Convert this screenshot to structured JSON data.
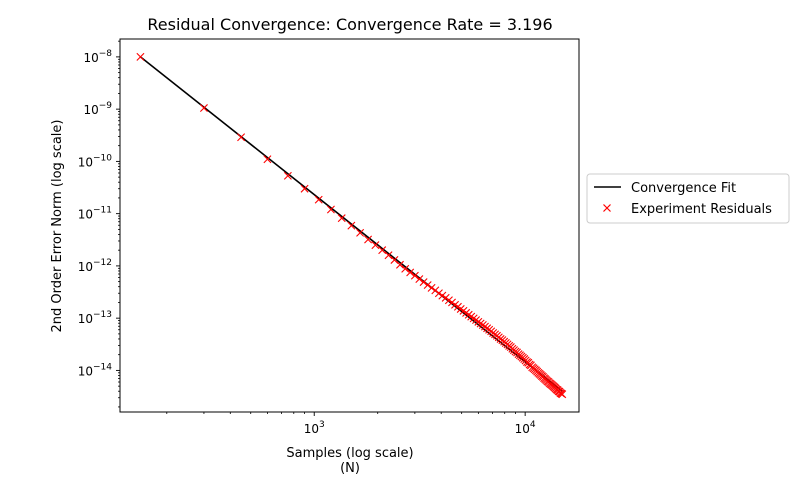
{
  "chart_data": {
    "type": "scatter",
    "title": "Residual Convergence: Convergence Rate = 3.196",
    "xlabel": "Samples (log scale)",
    "xlabel_sub": "(N)",
    "ylabel": "2nd Order Error Norm (log scale)",
    "xscale": "log",
    "yscale": "log",
    "xlim": [
      120,
      18000
    ],
    "ylim": [
      1.6e-15,
      2.2e-08
    ],
    "xticks": [
      {
        "value": 1000,
        "base": "10",
        "exp": "3"
      },
      {
        "value": 10000,
        "base": "10",
        "exp": "4"
      }
    ],
    "yticks": [
      {
        "value": 1e-08,
        "base": "10",
        "exp": "−8"
      },
      {
        "value": 1e-09,
        "base": "10",
        "exp": "−9"
      },
      {
        "value": 1e-10,
        "base": "10",
        "exp": "−10"
      },
      {
        "value": 1e-11,
        "base": "10",
        "exp": "−11"
      },
      {
        "value": 1e-12,
        "base": "10",
        "exp": "−12"
      },
      {
        "value": 1e-13,
        "base": "10",
        "exp": "−13"
      },
      {
        "value": 1e-14,
        "base": "10",
        "exp": "−14"
      }
    ],
    "grid": false,
    "legend_position": "outside-right",
    "series": [
      {
        "name": "Convergence Fit",
        "kind": "line",
        "color": "#000000",
        "x": [
          150,
          15000
        ],
        "y": [
          1e-08,
          4e-15
        ]
      },
      {
        "name": "Experiment Residuals",
        "kind": "scatter",
        "marker": "x",
        "color": "#ff0000",
        "x": [
          150,
          300,
          450,
          600,
          750,
          900,
          1050,
          1200,
          1350,
          1500,
          1650,
          1800,
          1950,
          2100,
          2250,
          2400,
          2550,
          2700,
          2850,
          3000,
          3150,
          3300,
          3450,
          3600,
          3750,
          3900,
          4050,
          4200,
          4350,
          4500,
          4650,
          4800,
          4950,
          5100,
          5250,
          5400,
          5550,
          5700,
          5850,
          6000,
          6150,
          6300,
          6450,
          6600,
          6750,
          6900,
          7050,
          7200,
          7350,
          7500,
          7650,
          7800,
          7950,
          8100,
          8250,
          8400,
          8550,
          8700,
          8850,
          9000,
          9150,
          9300,
          9450,
          9600,
          9750,
          9900,
          10050,
          10200,
          10350,
          10500,
          10650,
          10800,
          10950,
          11100,
          11250,
          11400,
          11550,
          11700,
          11850,
          12000,
          12150,
          12300,
          12450,
          12600,
          12750,
          12900,
          13050,
          13200,
          13350,
          13500,
          13650,
          13800,
          13950,
          14100,
          14250,
          14400,
          14550,
          14700,
          14850,
          15000
        ],
        "y": [
          1e-08,
          1.05e-09,
          2.9e-10,
          1.1e-10,
          5.3e-11,
          3e-11,
          1.85e-11,
          1.2e-11,
          8.2e-12,
          5.9e-12,
          4.3e-12,
          3.2e-12,
          2.5e-12,
          2e-12,
          1.6e-12,
          1.3e-12,
          1.05e-12,
          8.8e-13,
          7.5e-13,
          6.5e-13,
          5.6e-13,
          4.9e-13,
          4.3e-13,
          3.8e-13,
          3.4e-13,
          3e-13,
          2.7e-13,
          2.45e-13,
          2.2e-13,
          2e-13,
          1.8e-13,
          1.65e-13,
          1.5e-13,
          1.38e-13,
          1.26e-13,
          1.16e-13,
          1.07e-13,
          9.9e-14,
          9.2e-14,
          8.5e-14,
          7.9e-14,
          7.4e-14,
          6.9e-14,
          6.4e-14,
          6e-14,
          5.6e-14,
          5.2e-14,
          4.9e-14,
          4.6e-14,
          4.3e-14,
          4e-14,
          3.8e-14,
          3.55e-14,
          3.35e-14,
          3.15e-14,
          2.95e-14,
          2.8e-14,
          2.6e-14,
          2.45e-14,
          2.3e-14,
          2.2e-14,
          2.05e-14,
          1.95e-14,
          1.85e-14,
          1.75e-14,
          1.65e-14,
          1.55e-14,
          1.45e-14,
          1.4e-14,
          1.3e-14,
          1.25e-14,
          1.15e-14,
          1.1e-14,
          1.05e-14,
          1e-14,
          9.5e-15,
          9e-15,
          8.6e-15,
          8.2e-15,
          7.8e-15,
          7.5e-15,
          7.1e-15,
          6.8e-15,
          6.5e-15,
          6.2e-15,
          6e-15,
          5.7e-15,
          5.5e-15,
          5.3e-15,
          5.1e-15,
          4.9e-15,
          4.7e-15,
          4.5e-15,
          4.3e-15,
          4.2e-15,
          4e-15,
          3.9e-15,
          3.7e-15,
          3.6e-15,
          3.5e-15
        ]
      }
    ]
  }
}
